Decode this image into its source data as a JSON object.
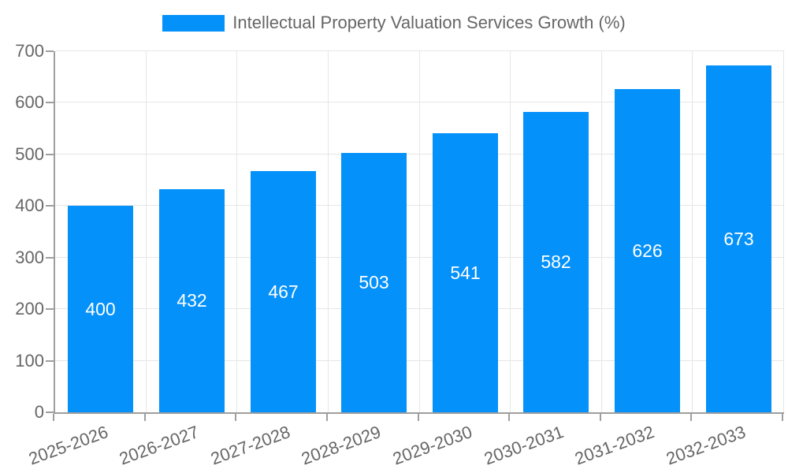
{
  "chart": {
    "legend": {
      "label": "Intellectual Property Valuation Services Growth (%)"
    },
    "colors": {
      "bar": "#0591fa",
      "grid": "#e6e6e6",
      "axis": "#9e9e9e",
      "tick_text": "#666666",
      "value_label": "#ffffff",
      "background": "#ffffff"
    }
  },
  "chart_data": {
    "type": "bar",
    "title": "Intellectual Property Valuation Services Growth (%)",
    "categories": [
      "2025-2026",
      "2026-2027",
      "2027-2028",
      "2028-2029",
      "2029-2030",
      "2030-2031",
      "2031-2032",
      "2032-2033"
    ],
    "values": [
      400,
      432,
      467,
      503,
      541,
      582,
      626,
      673
    ],
    "xlabel": "",
    "ylabel": "",
    "ylim": [
      0,
      700
    ],
    "ytick_step": 100,
    "yticks": [
      0,
      100,
      200,
      300,
      400,
      500,
      600,
      700
    ],
    "grid": true,
    "legend_position": "top",
    "value_labels": "inside-center",
    "x_label_rotation_deg": -20
  }
}
